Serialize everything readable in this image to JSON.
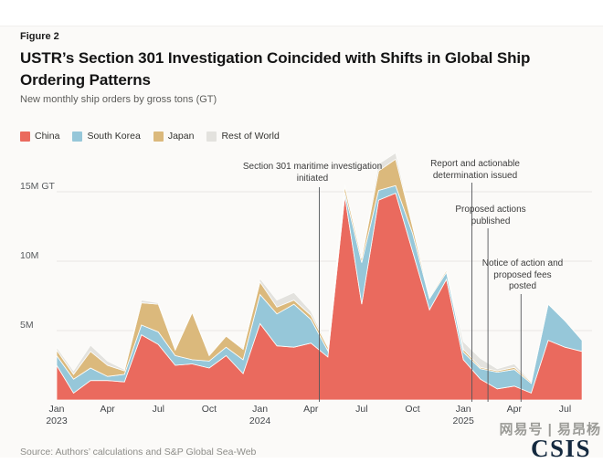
{
  "header": {
    "figure_label": "Figure 2",
    "title_line1": "USTR’s Section 301 Investigation Coincided with Shifts in Global Ship",
    "title_line2": "Ordering Patterns",
    "subtitle": "New monthly ship orders by gross tons (GT)"
  },
  "footer": {
    "source": "Source: Authors’ calculations and S&P Global Sea-Web",
    "watermark": "网易号 | 易昂杨",
    "logo": "CSIS"
  },
  "chart_data": {
    "type": "area",
    "stacked": true,
    "title": "New monthly ship orders by gross tons (GT)",
    "unit": "million GT",
    "x_start": "Jan 2023",
    "x_end": "Aug 2025",
    "months": [
      "Jan 2023",
      "Feb 2023",
      "Mar 2023",
      "Apr 2023",
      "May 2023",
      "Jun 2023",
      "Jul 2023",
      "Aug 2023",
      "Sep 2023",
      "Oct 2023",
      "Nov 2023",
      "Dec 2023",
      "Jan 2024",
      "Feb 2024",
      "Mar 2024",
      "Apr 2024",
      "May 2024",
      "Jun 2024",
      "Jul 2024",
      "Aug 2024",
      "Sep 2024",
      "Oct 2024",
      "Nov 2024",
      "Dec 2024",
      "Jan 2025",
      "Feb 2025",
      "Mar 2025",
      "Apr 2025",
      "May 2025",
      "Jun 2025",
      "Jul 2025",
      "Aug 2025"
    ],
    "series": [
      {
        "name": "China",
        "color": "#EA6A5E",
        "values": [
          2.5,
          0.5,
          1.4,
          1.4,
          1.3,
          4.7,
          4.0,
          2.5,
          2.6,
          2.3,
          3.2,
          1.9,
          5.5,
          3.9,
          3.8,
          4.1,
          3.1,
          14.7,
          6.9,
          14.4,
          14.9,
          10.7,
          6.5,
          8.7,
          2.9,
          1.5,
          0.8,
          1.0,
          0.5,
          4.3,
          3.8,
          3.5
        ]
      },
      {
        "name": "South Korea",
        "color": "#96C7D9",
        "values": [
          0.7,
          1.0,
          0.9,
          0.3,
          0.55,
          0.7,
          0.9,
          0.7,
          0.3,
          0.5,
          0.6,
          1.0,
          2.1,
          2.3,
          3.1,
          1.7,
          0.45,
          0.25,
          3.0,
          0.7,
          0.55,
          1.3,
          0.8,
          0.5,
          0.55,
          0.75,
          1.2,
          1.2,
          0.7,
          2.6,
          1.9,
          0.8
        ]
      },
      {
        "name": "Japan",
        "color": "#DBB97C",
        "values": [
          0.4,
          0.35,
          1.2,
          0.8,
          0.25,
          1.6,
          2.0,
          0.4,
          3.4,
          0.4,
          0.8,
          0.75,
          0.9,
          0.5,
          0.3,
          0.3,
          0.25,
          0.45,
          0.3,
          1.4,
          1.9,
          0.5,
          0.1,
          0.15,
          0.2,
          0.1,
          0.1,
          0.15,
          0.1,
          0.0,
          0.0,
          0.0
        ]
      },
      {
        "name": "Rest of World",
        "color": "#E3E2DE",
        "values": [
          0.2,
          0.25,
          0.45,
          0.3,
          0.1,
          0.2,
          0.1,
          0.0,
          0.1,
          0.0,
          0.0,
          0.1,
          0.25,
          0.5,
          0.55,
          0.3,
          0.1,
          0.1,
          0.05,
          0.5,
          0.45,
          0.1,
          0.1,
          0.0,
          0.55,
          0.65,
          0.15,
          0.25,
          0.05,
          0.0,
          0.0,
          0.0
        ]
      }
    ],
    "y_axis": {
      "range": [
        0,
        18
      ],
      "ticks": [
        {
          "value": 5,
          "label": "5M"
        },
        {
          "value": 10,
          "label": "10M"
        },
        {
          "value": 15,
          "label": "15M GT"
        }
      ]
    },
    "x_axis": {
      "ticks": [
        {
          "index": 0,
          "label": "Jan",
          "year": "2023"
        },
        {
          "index": 3,
          "label": "Apr"
        },
        {
          "index": 6,
          "label": "Jul"
        },
        {
          "index": 9,
          "label": "Oct"
        },
        {
          "index": 12,
          "label": "Jan",
          "year": "2024"
        },
        {
          "index": 15,
          "label": "Apr"
        },
        {
          "index": 18,
          "label": "Jul"
        },
        {
          "index": 21,
          "label": "Oct"
        },
        {
          "index": 24,
          "label": "Jan",
          "year": "2025"
        },
        {
          "index": 27,
          "label": "Apr"
        },
        {
          "index": 30,
          "label": "Jul"
        }
      ]
    },
    "annotations": [
      {
        "label": "Section 301 maritime investigation\ninitiated",
        "month": "Apr 2024",
        "month_index": 15.5
      },
      {
        "label": "Report and actionable\ndetermination issued",
        "month": "Jan 2025",
        "month_index": 24.5
      },
      {
        "label": "Proposed actions\npublished",
        "month": "Feb 2025",
        "month_index": 25.45
      },
      {
        "label": "Notice of action and\nproposed fees\nposted",
        "month": "Apr 2025",
        "month_index": 27.4
      }
    ],
    "grid": true,
    "legend_position": "top-left"
  }
}
